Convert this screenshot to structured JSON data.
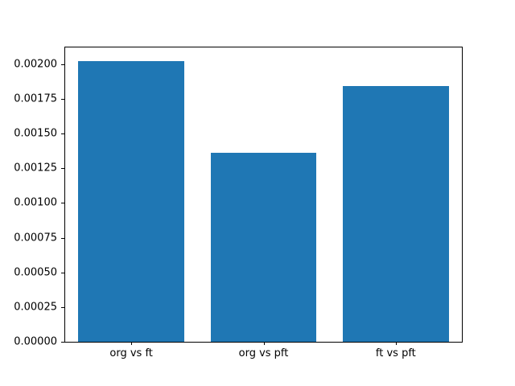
{
  "chart_data": {
    "type": "bar",
    "categories": [
      "org vs ft",
      "org vs pft",
      "ft vs pft"
    ],
    "values": [
      0.00202,
      0.00136,
      0.00184
    ],
    "title": "",
    "xlabel": "",
    "ylabel": "",
    "ylim": [
      0,
      0.00212
    ],
    "yticks": [
      0.0,
      0.00025,
      0.0005,
      0.00075,
      0.001,
      0.00125,
      0.0015,
      0.00175,
      0.002
    ],
    "ytick_labels": [
      "0.00000",
      "0.00025",
      "0.00050",
      "0.00075",
      "0.00100",
      "0.00125",
      "0.00150",
      "0.00175",
      "0.00200"
    ],
    "bar_color": "#1f77b4",
    "bar_width_fraction": 0.8,
    "grid": false,
    "legend_position": "none",
    "background_color": "#ffffff",
    "axis_color": "#000000"
  }
}
